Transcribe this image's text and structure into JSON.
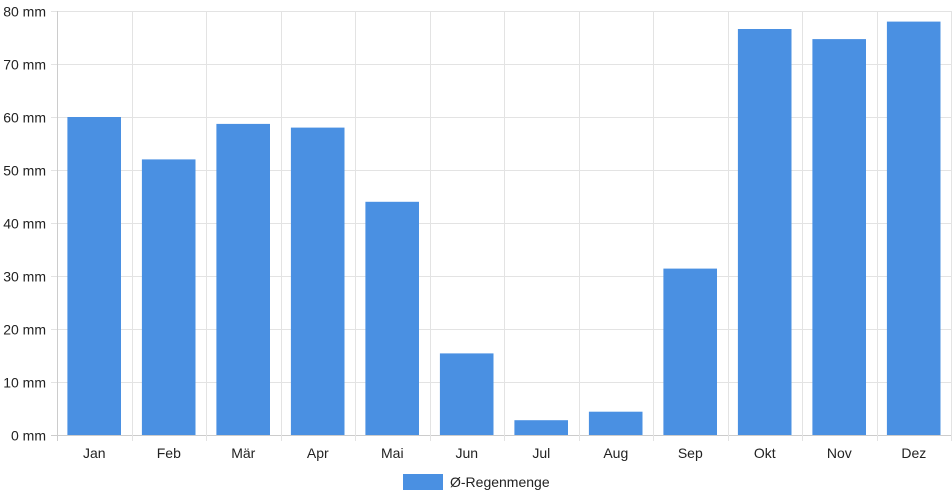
{
  "chart_data": {
    "type": "bar",
    "title": "",
    "xlabel": "",
    "ylabel": "",
    "categories": [
      "Jan",
      "Feb",
      "Mär",
      "Apr",
      "Mai",
      "Jun",
      "Jul",
      "Aug",
      "Sep",
      "Okt",
      "Nov",
      "Dez"
    ],
    "series": [
      {
        "name": "Ø-Regenmenge",
        "values": [
          60,
          52,
          58.7,
          58,
          44,
          15.4,
          2.8,
          4.4,
          31.4,
          76.6,
          74.7,
          78
        ],
        "color": "#4a90e2"
      }
    ],
    "ylim": [
      0,
      80
    ],
    "yticks": [
      {
        "value": 0,
        "label": "0 mm"
      },
      {
        "value": 10,
        "label": "10 mm"
      },
      {
        "value": 20,
        "label": "20 mm"
      },
      {
        "value": 30,
        "label": "30 mm"
      },
      {
        "value": 40,
        "label": "40 mm"
      },
      {
        "value": 50,
        "label": "50 mm"
      },
      {
        "value": 60,
        "label": "60 mm"
      },
      {
        "value": 70,
        "label": "70 mm"
      },
      {
        "value": 80,
        "label": "80 mm"
      }
    ],
    "grid": true,
    "legend": {
      "position": "bottom-center",
      "label": "Ø-Regenmenge"
    }
  }
}
